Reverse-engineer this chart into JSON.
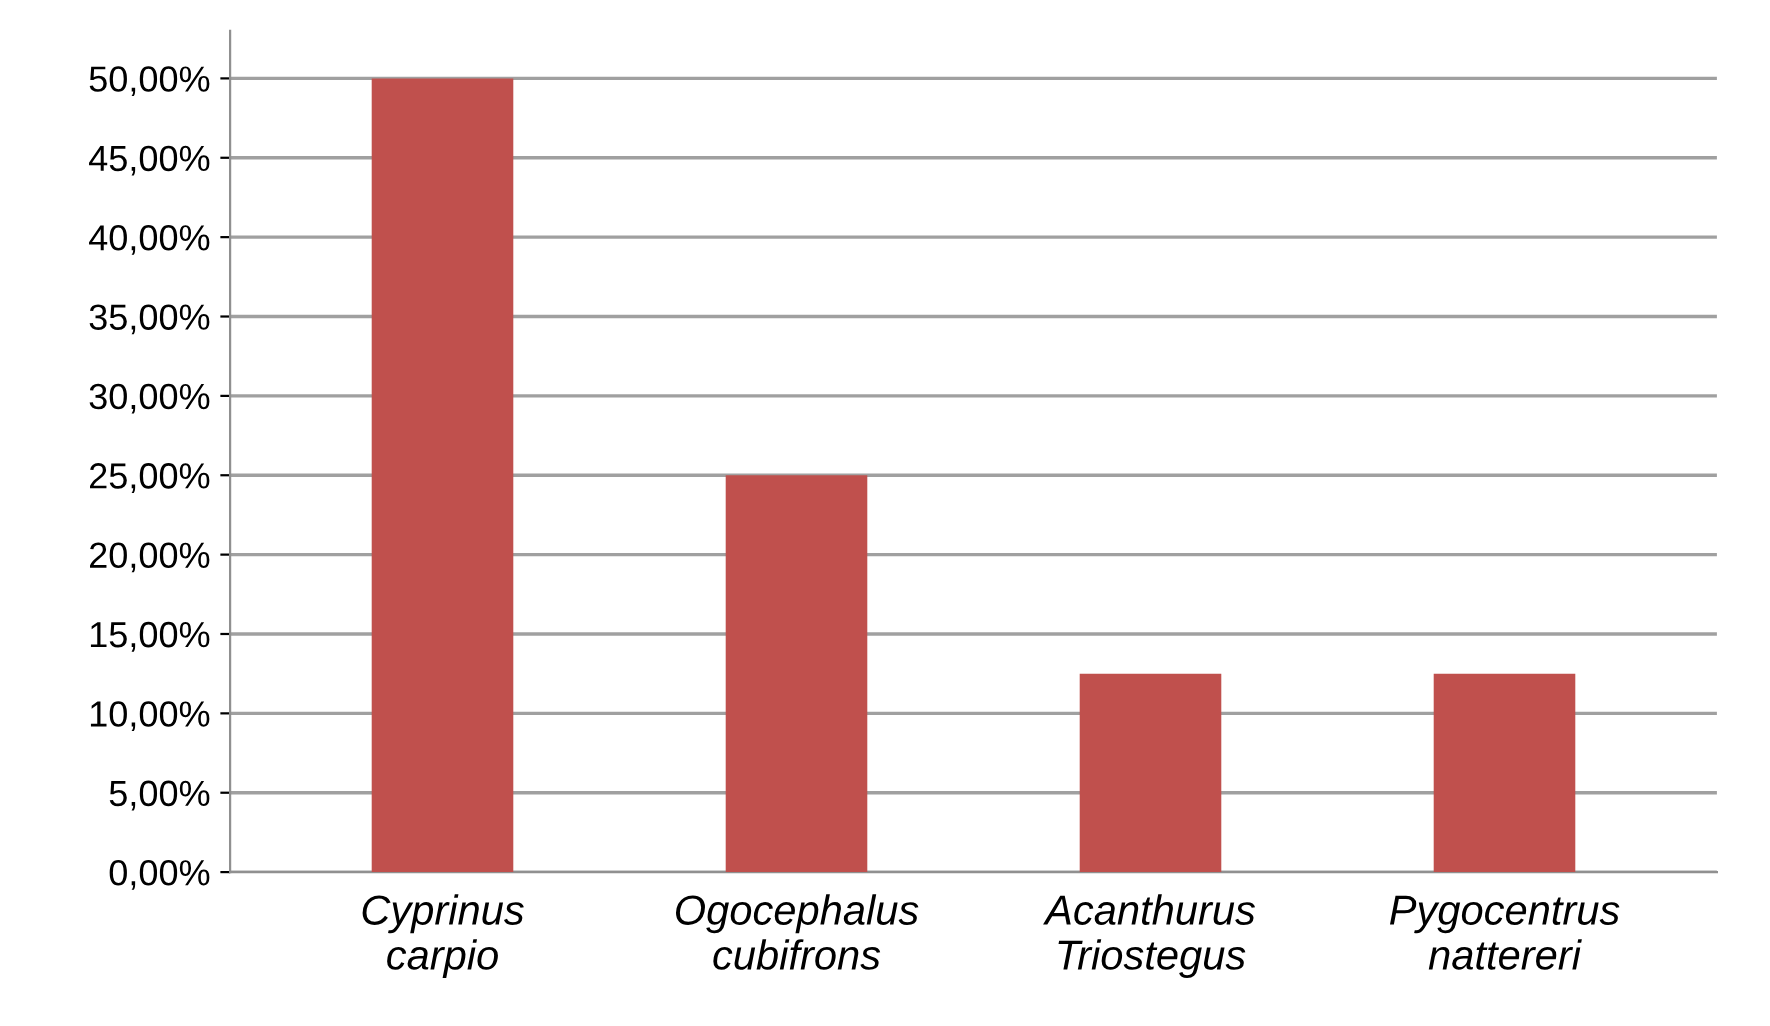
{
  "chart_data": {
    "type": "bar",
    "categories": [
      "Cyprinus\ncarpio",
      "Ogocephalus\ncubifrons",
      "Acanthurus\nTriostegus",
      "Pygocentrus\nnattereri"
    ],
    "values": [
      50,
      25,
      12.5,
      12.5
    ],
    "color": "#c0504d",
    "ylim": [
      0,
      53
    ],
    "yticks": [
      {
        "value": 0,
        "label": "0,00%"
      },
      {
        "value": 5,
        "label": "5,00%"
      },
      {
        "value": 10,
        "label": "10,00%"
      },
      {
        "value": 15,
        "label": "15,00%"
      },
      {
        "value": 20,
        "label": "20,00%"
      },
      {
        "value": 25,
        "label": "25,00%"
      },
      {
        "value": 30,
        "label": "30,00%"
      },
      {
        "value": 35,
        "label": "35,00%"
      },
      {
        "value": 40,
        "label": "40,00%"
      },
      {
        "value": 45,
        "label": "45,00%"
      },
      {
        "value": 50,
        "label": "50,00%"
      }
    ],
    "grid": "y"
  }
}
